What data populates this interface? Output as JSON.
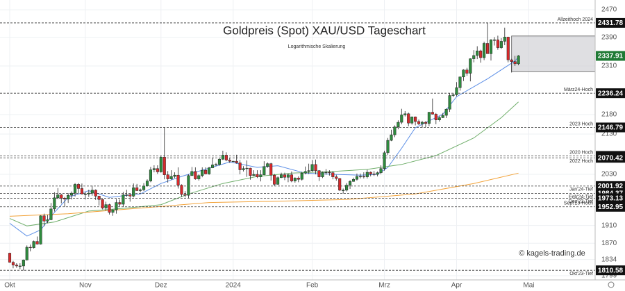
{
  "chart_data": {
    "type": "candlestick",
    "title": "Goldpreis (Spot) XAU/USD Tageschart",
    "subtitle": "Logarithmische Skalierung",
    "watermark": "© kagels-trading.de",
    "log_scale": true,
    "grid": true,
    "up_color": "#2e8b3e",
    "down_color": "#d9292b",
    "ylim": [
      1790,
      2499
    ],
    "yticks": [
      1799,
      1834,
      1870,
      1910,
      2030,
      2130,
      2180,
      2310,
      2390,
      2470
    ],
    "categories": [
      "Okt",
      null,
      null,
      null,
      null,
      null,
      null,
      null,
      null,
      null,
      null,
      null,
      null,
      null,
      null,
      null,
      null,
      null,
      null,
      null,
      null,
      null,
      "Nov",
      null,
      null,
      null,
      null,
      null,
      null,
      null,
      null,
      null,
      null,
      null,
      null,
      null,
      null,
      null,
      null,
      null,
      null,
      null,
      null,
      null,
      "Dez",
      null,
      null,
      null,
      null,
      null,
      null,
      null,
      null,
      null,
      null,
      null,
      null,
      null,
      null,
      null,
      null,
      null,
      null,
      null,
      null,
      "2024",
      null,
      null,
      null,
      null,
      null,
      null,
      null,
      null,
      null,
      null,
      null,
      null,
      null,
      null,
      null,
      null,
      null,
      null,
      null,
      null,
      null,
      null,
      "Feb",
      null,
      null,
      null,
      null,
      null,
      null,
      null,
      null,
      null,
      null,
      null,
      null,
      null,
      null,
      null,
      null,
      null,
      null,
      null,
      null,
      "Mrz",
      null,
      null,
      null,
      null,
      null,
      null,
      null,
      null,
      null,
      null,
      null,
      null,
      null,
      null,
      null,
      null,
      null,
      null,
      null,
      null,
      "Apr",
      null,
      null,
      null,
      null,
      null,
      null,
      null,
      null,
      null,
      null,
      null,
      null,
      null,
      null,
      null,
      null,
      null,
      null,
      null,
      null,
      "Mai"
    ],
    "ohlc": [
      [
        1848,
        1849,
        1827,
        1828
      ],
      [
        1828,
        1831,
        1815,
        1822
      ],
      [
        1822,
        1826,
        1816,
        1820
      ],
      [
        1820,
        1826,
        1813,
        1820
      ],
      [
        1820,
        1834,
        1810,
        1833
      ],
      [
        1833,
        1865,
        1832,
        1861
      ],
      [
        1861,
        1867,
        1852,
        1860
      ],
      [
        1860,
        1876,
        1858,
        1874
      ],
      [
        1874,
        1885,
        1867,
        1868
      ],
      [
        1868,
        1933,
        1867,
        1932
      ],
      [
        1932,
        1937,
        1908,
        1920
      ],
      [
        1920,
        1934,
        1915,
        1923
      ],
      [
        1923,
        1962,
        1922,
        1948
      ],
      [
        1948,
        1987,
        1942,
        1974
      ],
      [
        1974,
        1997,
        1971,
        1981
      ],
      [
        1981,
        1983,
        1961,
        1973
      ],
      [
        1973,
        1976,
        1953,
        1971
      ],
      [
        1971,
        1985,
        1962,
        1980
      ],
      [
        1980,
        1989,
        1970,
        1985
      ],
      [
        1985,
        2009,
        1977,
        2006
      ],
      [
        2006,
        2009,
        1985,
        1996
      ],
      [
        1996,
        2008,
        1982,
        1983
      ],
      [
        1983,
        1988,
        1970,
        1983
      ],
      [
        1983,
        1993,
        1976,
        1985
      ],
      [
        1985,
        2003,
        1979,
        1992
      ],
      [
        1992,
        1994,
        1969,
        1978
      ],
      [
        1978,
        1979,
        1956,
        1970
      ],
      [
        1970,
        1971,
        1947,
        1950
      ],
      [
        1950,
        1965,
        1944,
        1958
      ],
      [
        1958,
        1960,
        1935,
        1940
      ],
      [
        1940,
        1947,
        1932,
        1946
      ],
      [
        1946,
        1971,
        1937,
        1963
      ],
      [
        1963,
        1970,
        1954,
        1959
      ],
      [
        1959,
        1988,
        1953,
        1981
      ],
      [
        1981,
        1993,
        1976,
        1981
      ],
      [
        1981,
        1985,
        1965,
        1978
      ],
      [
        1978,
        2008,
        1975,
        1998
      ],
      [
        1998,
        2007,
        1990,
        1991
      ],
      [
        1991,
        1996,
        1987,
        1993
      ],
      [
        1993,
        2009,
        1990,
        2002
      ],
      [
        2002,
        2018,
        2001,
        2014
      ],
      [
        2014,
        2048,
        2011,
        2041
      ],
      [
        2041,
        2052,
        2035,
        2044
      ],
      [
        2044,
        2052,
        2031,
        2036
      ],
      [
        2036,
        2075,
        2034,
        2072
      ],
      [
        2072,
        2147,
        2018,
        2029
      ],
      [
        2029,
        2038,
        2010,
        2019
      ],
      [
        2019,
        2040,
        2017,
        2025
      ],
      [
        2025,
        2035,
        2021,
        2028
      ],
      [
        2028,
        2047,
        1996,
        2004
      ],
      [
        2004,
        2006,
        1976,
        1982
      ],
      [
        1982,
        1990,
        1975,
        1980
      ],
      [
        1980,
        2030,
        1973,
        2027
      ],
      [
        2027,
        2048,
        2026,
        2037
      ],
      [
        2037,
        2047,
        2017,
        2019
      ],
      [
        2019,
        2030,
        2015,
        2027
      ],
      [
        2027,
        2047,
        2023,
        2040
      ],
      [
        2040,
        2047,
        2030,
        2031
      ],
      [
        2031,
        2048,
        2029,
        2046
      ],
      [
        2046,
        2071,
        2045,
        2053
      ],
      [
        2053,
        2058,
        2050,
        2054
      ],
      [
        2054,
        2069,
        2051,
        2067
      ],
      [
        2067,
        2088,
        2065,
        2077
      ],
      [
        2077,
        2084,
        2062,
        2065
      ],
      [
        2065,
        2070,
        2058,
        2062
      ],
      [
        2062,
        2063,
        2061,
        2062
      ],
      [
        2062,
        2078,
        2056,
        2058
      ],
      [
        2058,
        2065,
        2030,
        2041
      ],
      [
        2041,
        2050,
        2037,
        2044
      ],
      [
        2044,
        2064,
        2024,
        2045
      ],
      [
        2045,
        2046,
        2017,
        2027
      ],
      [
        2027,
        2040,
        2026,
        2030
      ],
      [
        2030,
        2040,
        2021,
        2024
      ],
      [
        2024,
        2040,
        2013,
        2029
      ],
      [
        2029,
        2062,
        2028,
        2049
      ],
      [
        2049,
        2059,
        2046,
        2056
      ],
      [
        2056,
        2058,
        2015,
        2028
      ],
      [
        2028,
        2031,
        2002,
        2006
      ],
      [
        2006,
        2025,
        2005,
        2022
      ],
      [
        2022,
        2034,
        2021,
        2029
      ],
      [
        2029,
        2034,
        2016,
        2023
      ],
      [
        2023,
        2032,
        2011,
        2029
      ],
      [
        2029,
        2037,
        2011,
        2014
      ],
      [
        2014,
        2023,
        2010,
        2021
      ],
      [
        2021,
        2025,
        2011,
        2018
      ],
      [
        2018,
        2036,
        2015,
        2033
      ],
      [
        2033,
        2049,
        2030,
        2037
      ],
      [
        2037,
        2056,
        2031,
        2039
      ],
      [
        2039,
        2065,
        2036,
        2054
      ],
      [
        2054,
        2066,
        2030,
        2039
      ],
      [
        2039,
        2040,
        2014,
        2024
      ],
      [
        2024,
        2037,
        2021,
        2035
      ],
      [
        2035,
        2043,
        2029,
        2035
      ],
      [
        2035,
        2040,
        2027,
        2034
      ],
      [
        2034,
        2038,
        2018,
        2024
      ],
      [
        2024,
        2029,
        2015,
        2020
      ],
      [
        2020,
        2021,
        1990,
        1992
      ],
      [
        1992,
        1996,
        1984,
        1992
      ],
      [
        1992,
        2009,
        1989,
        2004
      ],
      [
        2004,
        2016,
        1995,
        2013
      ],
      [
        2013,
        2022,
        2012,
        2018
      ],
      [
        2018,
        2032,
        2015,
        2025
      ],
      [
        2025,
        2032,
        2020,
        2025
      ],
      [
        2025,
        2035,
        2020,
        2024
      ],
      [
        2024,
        2041,
        2020,
        2035
      ],
      [
        2035,
        2037,
        2025,
        2031
      ],
      [
        2031,
        2038,
        2026,
        2030
      ],
      [
        2030,
        2037,
        2025,
        2034
      ],
      [
        2034,
        2052,
        2030,
        2044
      ],
      [
        2044,
        2088,
        2039,
        2083
      ],
      [
        2083,
        2120,
        2078,
        2114
      ],
      [
        2114,
        2141,
        2112,
        2128
      ],
      [
        2128,
        2152,
        2122,
        2148
      ],
      [
        2148,
        2165,
        2142,
        2160
      ],
      [
        2160,
        2195,
        2155,
        2179
      ],
      [
        2179,
        2189,
        2175,
        2182
      ],
      [
        2182,
        2185,
        2150,
        2158
      ],
      [
        2158,
        2175,
        2154,
        2174
      ],
      [
        2174,
        2175,
        2152,
        2162
      ],
      [
        2162,
        2167,
        2153,
        2156
      ],
      [
        2156,
        2164,
        2146,
        2160
      ],
      [
        2160,
        2163,
        2147,
        2157
      ],
      [
        2157,
        2187,
        2150,
        2186
      ],
      [
        2186,
        2222,
        2180,
        2181
      ],
      [
        2181,
        2184,
        2155,
        2166
      ],
      [
        2166,
        2176,
        2162,
        2172
      ],
      [
        2172,
        2184,
        2171,
        2178
      ],
      [
        2178,
        2196,
        2171,
        2194
      ],
      [
        2194,
        2236,
        2187,
        2230
      ],
      [
        2230,
        2236,
        2226,
        2232
      ],
      [
        2232,
        2266,
        2228,
        2251
      ],
      [
        2251,
        2281,
        2243,
        2280
      ],
      [
        2280,
        2301,
        2269,
        2299
      ],
      [
        2299,
        2305,
        2283,
        2290
      ],
      [
        2290,
        2331,
        2268,
        2330
      ],
      [
        2330,
        2354,
        2320,
        2339
      ],
      [
        2339,
        2365,
        2329,
        2352
      ],
      [
        2352,
        2355,
        2319,
        2333
      ],
      [
        2333,
        2378,
        2326,
        2373
      ],
      [
        2373,
        2432,
        2359,
        2344
      ],
      [
        2344,
        2385,
        2325,
        2383
      ],
      [
        2383,
        2391,
        2367,
        2383
      ],
      [
        2383,
        2395,
        2355,
        2361
      ],
      [
        2361,
        2388,
        2357,
        2379
      ],
      [
        2379,
        2418,
        2368,
        2391
      ],
      [
        2391,
        2392,
        2320,
        2327
      ],
      [
        2327,
        2330,
        2292,
        2322
      ],
      [
        2322,
        2338,
        2310,
        2316
      ],
      [
        2316,
        2340,
        2312,
        2338
      ],
      null,
      null,
      null
    ],
    "series": [
      {
        "color": "#5b8ee6",
        "x": [
          0,
          5,
          9,
          13,
          17,
          23,
          29,
          34,
          38,
          44,
          50,
          58,
          64,
          72,
          78,
          86,
          94,
          102,
          107,
          110,
          114,
          118,
          126,
          130,
          139,
          147,
          148
        ],
        "values": [
          1915,
          1886,
          1900,
          1940,
          1975,
          1991,
          1975,
          1980,
          1983,
          2008,
          2025,
          2045,
          2060,
          2047,
          2051,
          2033,
          2030,
          2028,
          2030,
          2047,
          2094,
          2146,
          2181,
          2227,
          2275,
          2324,
          2335
        ]
      },
      {
        "color": "#6fae6a",
        "x": [
          0,
          5,
          13,
          23,
          34,
          44,
          52,
          62,
          72,
          82,
          94,
          104,
          114,
          124,
          135,
          143,
          148
        ],
        "values": [
          1926,
          1909,
          1918,
          1943,
          1950,
          1958,
          1983,
          2008,
          2025,
          2033,
          2037,
          2042,
          2054,
          2076,
          2120,
          2172,
          2213
        ]
      },
      {
        "color": "#f2a33a",
        "x": [
          0,
          17,
          38,
          58,
          78,
          98,
          118,
          135,
          148
        ],
        "values": [
          1931,
          1937,
          1950,
          1963,
          1966,
          1970,
          1983,
          2008,
          2033
        ]
      }
    ],
    "zone": {
      "from": 146,
      "low": 2295,
      "high": 2394
    },
    "levels": [
      {
        "value": 2431.78,
        "note": "Allzeithoch 2024",
        "note_pos": "above"
      },
      {
        "value": 2236.24,
        "note": "März24-Hoch",
        "note_pos": "above"
      },
      {
        "value": 2146.79,
        "note": "2023 Hoch",
        "note_pos": "above"
      },
      {
        "value": 2075.14,
        "note": "2020 Hoch",
        "note_pos": "above"
      },
      {
        "value": 2070.42,
        "note": "2022 Hoch",
        "note_pos": "below"
      },
      {
        "value": 2001.92,
        "note": "Jan'24-Tief",
        "note_pos": "below"
      },
      {
        "value": 1984.37,
        "note": "Feb'24-Tief",
        "note_pos": "below"
      },
      {
        "value": 1973.13,
        "note": "Dez'23-Tief",
        "note_pos": "below"
      },
      {
        "value": 1952.95,
        "note": "Sept'23-Hoch",
        "note_pos": "above"
      },
      {
        "value": 1810.58,
        "note": "Okt'23-Tief",
        "note_pos": "below"
      }
    ],
    "last_price": 2337.91,
    "last_price_color": "#1f7a35"
  }
}
